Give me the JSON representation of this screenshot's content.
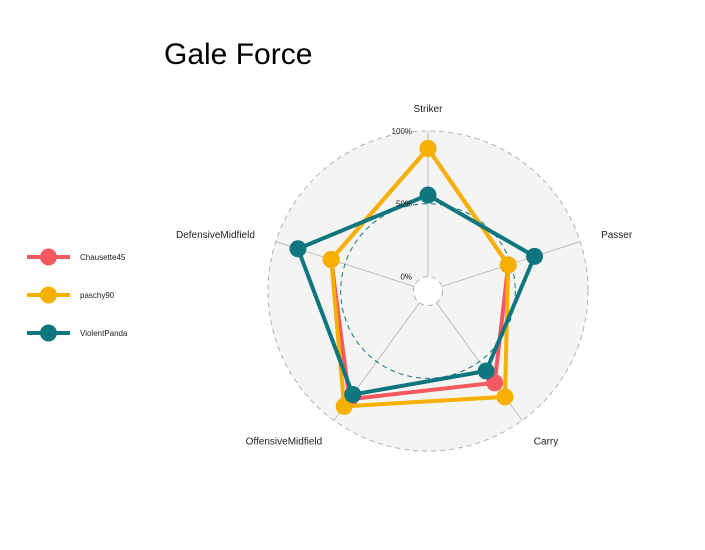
{
  "chart_data": {
    "type": "radar",
    "title": "Gale Force",
    "axes": [
      "Striker",
      "Passer",
      "Carry",
      "OffensiveMidfield",
      "DefensiveMidfield"
    ],
    "grid_labels": [
      "0%",
      "50%",
      "100%"
    ],
    "range": [
      -0.1,
      1.0
    ],
    "series": [
      {
        "name": "Chausette45",
        "color": "#f4595f",
        "values": [
          0.88,
          0.48,
          0.68,
          0.82,
          0.6
        ]
      },
      {
        "name": "paschy90",
        "color": "#f6b000",
        "values": [
          0.88,
          0.48,
          0.8,
          0.88,
          0.6
        ]
      },
      {
        "name": "ViolentPanda",
        "color": "#0f7680",
        "values": [
          0.56,
          0.67,
          0.58,
          0.78,
          0.84
        ]
      }
    ],
    "colors": {
      "panel": "#f4f4f2",
      "grid": "#b3b3b3",
      "mid_circle": "#0f7680"
    },
    "legend_position": "left"
  }
}
